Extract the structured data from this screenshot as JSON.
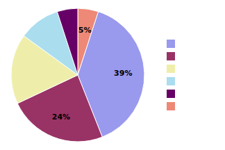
{
  "chart_data": {
    "type": "pie",
    "values": [
      5,
      39,
      24,
      17,
      10,
      5
    ],
    "value_labels": [
      "5%",
      "39%",
      "24%",
      null,
      null,
      null
    ],
    "colors": [
      "#ee8877",
      "#9999ee",
      "#993366",
      "#eeeeaa",
      "#aaddee",
      "#660066"
    ],
    "data_labels": true,
    "legend": "right",
    "legend_colors": [
      "#9999ee",
      "#993366",
      "#eeeeaa",
      "#aaddee",
      "#660066",
      "#ee8877"
    ]
  }
}
